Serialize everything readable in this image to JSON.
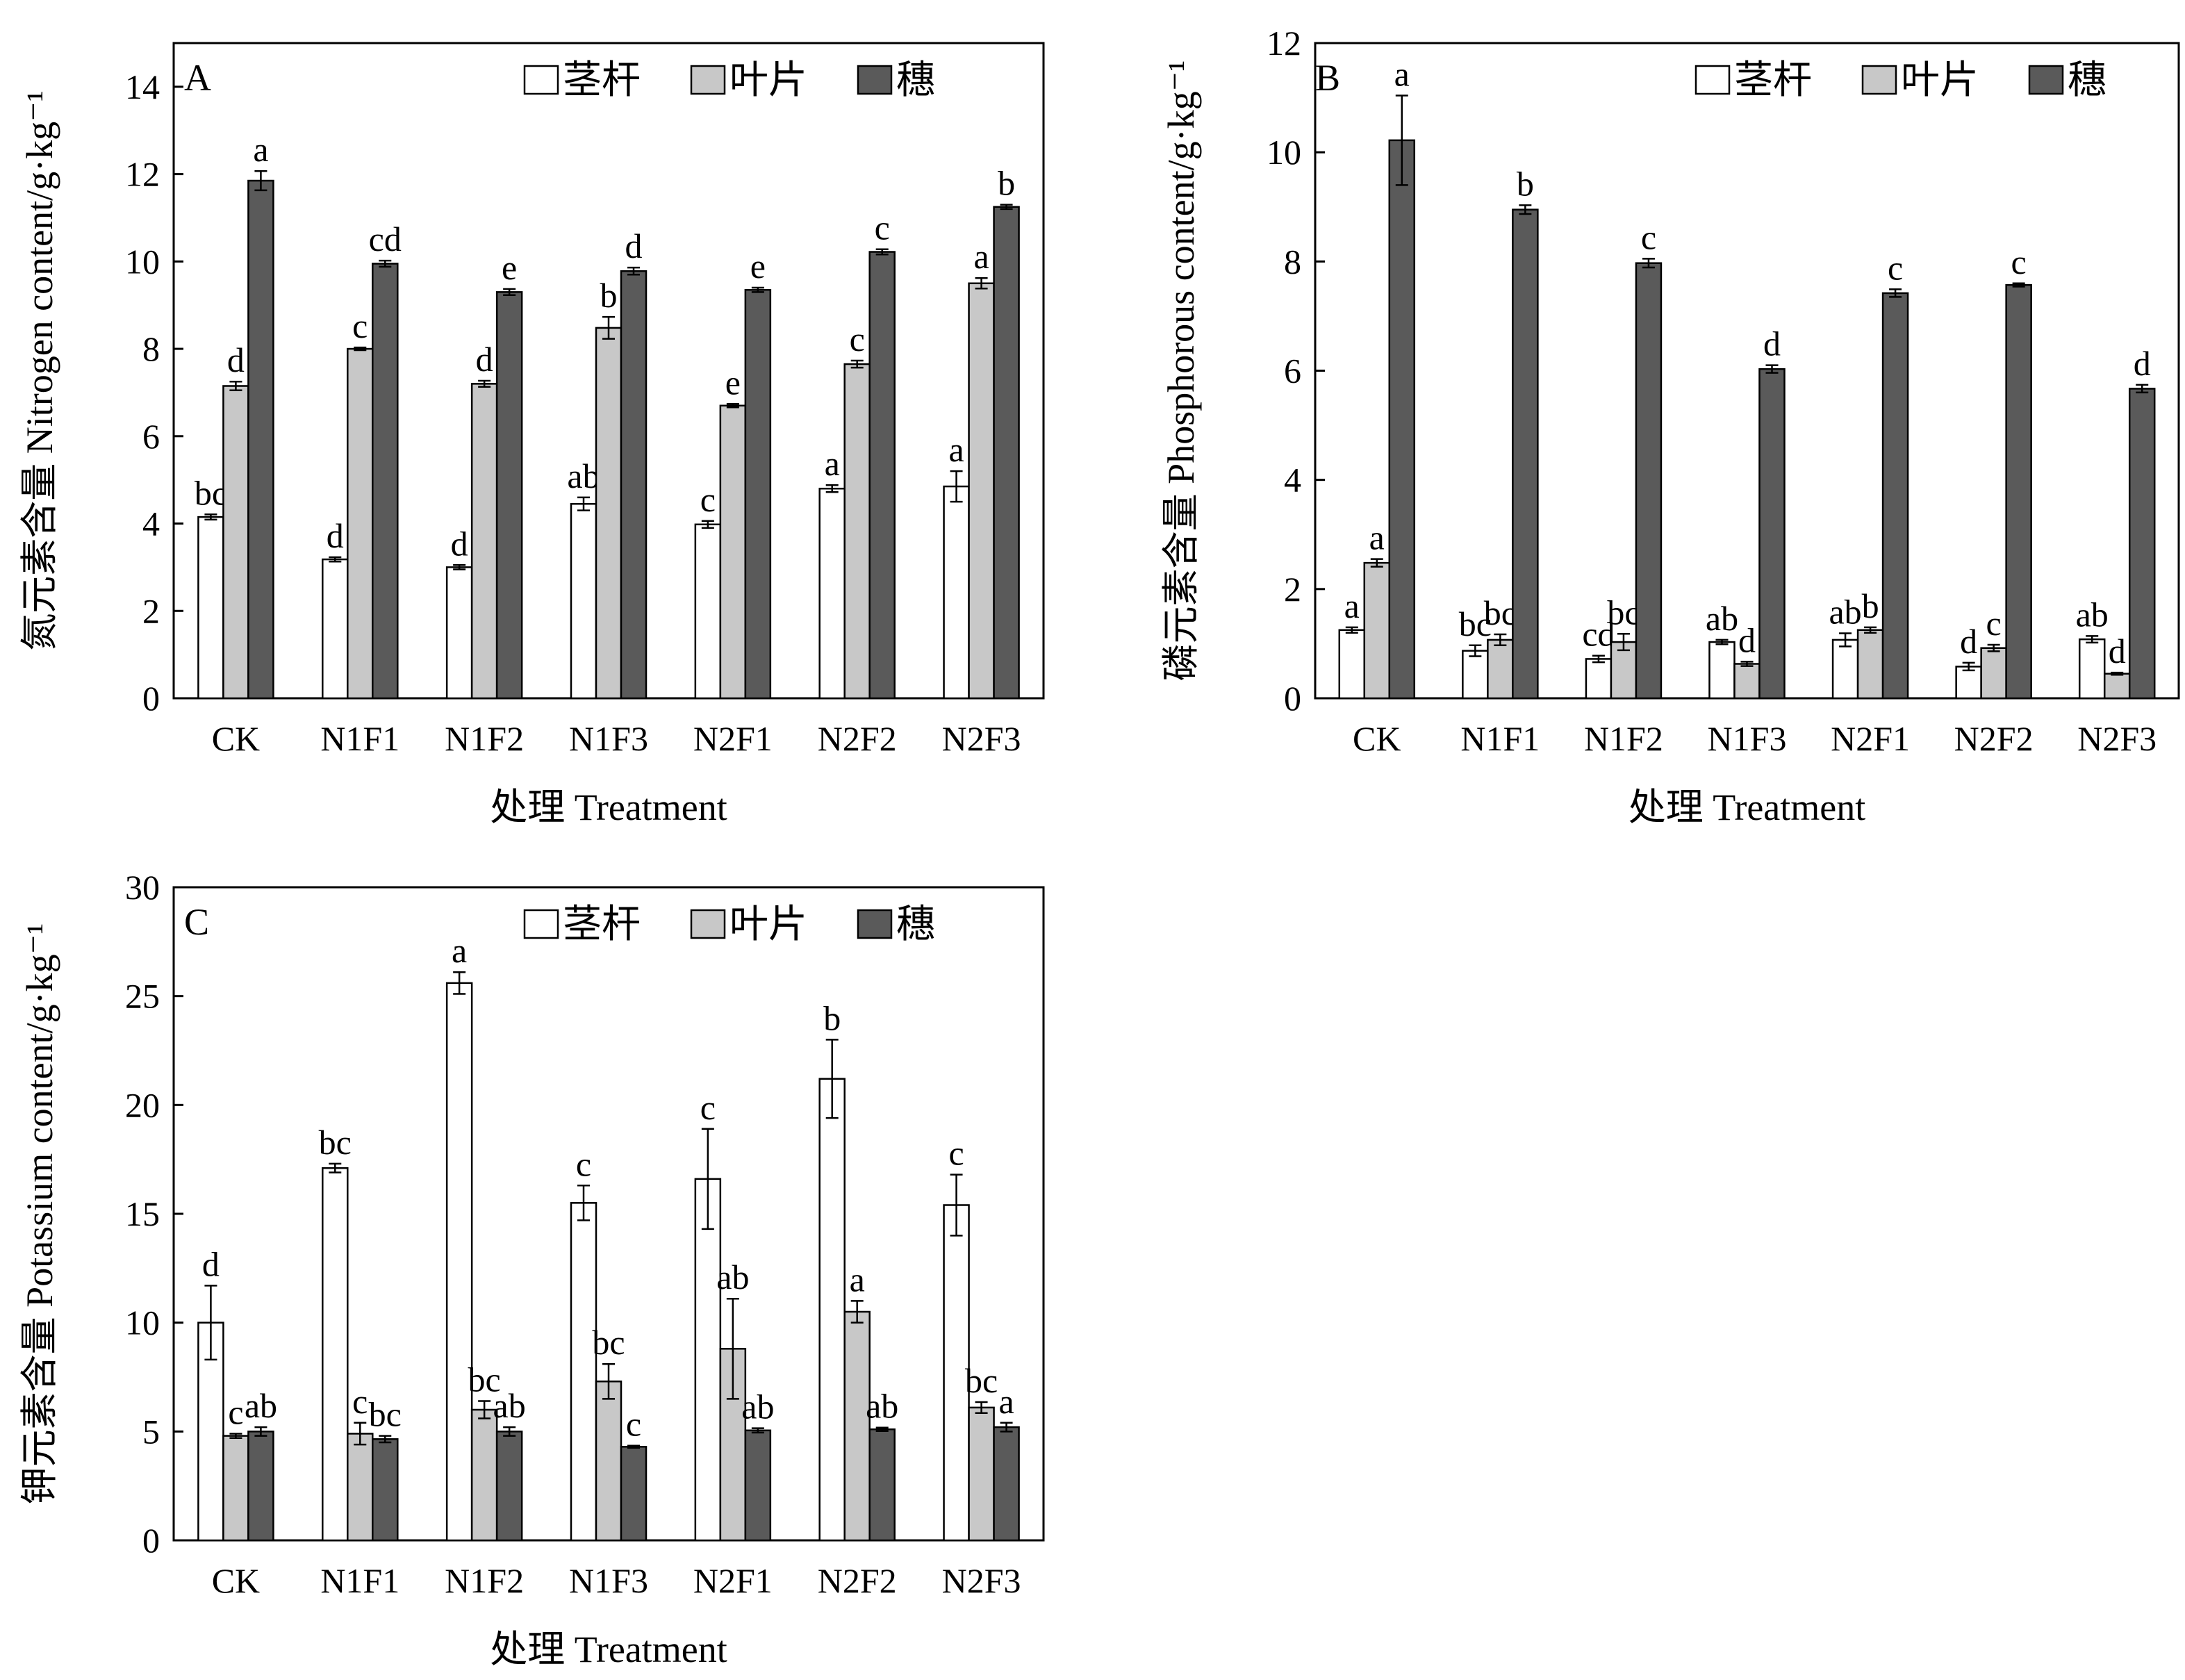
{
  "series_styles": [
    {
      "name": "茎杆",
      "fill": "#ffffff"
    },
    {
      "name": "叶片",
      "fill": "#c8c8c8"
    },
    {
      "name": "穗",
      "fill": "#5a5a5a"
    }
  ],
  "chart_data": [
    {
      "type": "bar",
      "panel": "A",
      "categories": [
        "CK",
        "N1F1",
        "N1F2",
        "N1F3",
        "N2F1",
        "N2F2",
        "N2F3"
      ],
      "xlabel": "处理 Treatment",
      "ylabel": "氮元素含量 Nitrogen content/g·kg⁻¹",
      "ylim": [
        0,
        15
      ],
      "yticks": [
        0,
        2,
        4,
        6,
        8,
        10,
        12,
        14
      ],
      "legend": [
        "茎杆",
        "叶片",
        "穗"
      ],
      "legend_position": "top-right",
      "series": [
        {
          "name": "茎杆",
          "values": [
            4.15,
            3.18,
            3.0,
            4.45,
            3.98,
            4.8,
            4.85
          ],
          "errors": [
            0.06,
            0.05,
            0.05,
            0.15,
            0.08,
            0.08,
            0.35
          ],
          "letters": [
            "bc",
            "d",
            "d",
            "ab",
            "c",
            "a",
            "a"
          ]
        },
        {
          "name": "叶片",
          "values": [
            7.15,
            8.0,
            7.2,
            8.48,
            6.7,
            7.65,
            9.5
          ],
          "errors": [
            0.1,
            0.03,
            0.07,
            0.25,
            0.04,
            0.08,
            0.12
          ],
          "letters": [
            "d",
            "c",
            "d",
            "b",
            "e",
            "c",
            "a"
          ]
        },
        {
          "name": "穗",
          "values": [
            11.85,
            9.95,
            9.3,
            9.78,
            9.35,
            10.22,
            11.25
          ],
          "errors": [
            0.22,
            0.07,
            0.07,
            0.08,
            0.05,
            0.06,
            0.05
          ],
          "letters": [
            "a",
            "cd",
            "e",
            "d",
            "e",
            "c",
            "b"
          ]
        }
      ]
    },
    {
      "type": "bar",
      "panel": "B",
      "categories": [
        "CK",
        "N1F1",
        "N1F2",
        "N1F3",
        "N2F1",
        "N2F2",
        "N2F3"
      ],
      "xlabel": "处理 Treatment",
      "ylabel": "磷元素含量 Phosphorous content/g·kg⁻¹",
      "ylim": [
        0,
        12
      ],
      "yticks": [
        0,
        2,
        4,
        6,
        8,
        10,
        12
      ],
      "legend": [
        "茎杆",
        "叶片",
        "穗"
      ],
      "legend_position": "top-right",
      "series": [
        {
          "name": "茎杆",
          "values": [
            1.25,
            0.87,
            0.72,
            1.03,
            1.07,
            0.58,
            1.08
          ],
          "errors": [
            0.05,
            0.1,
            0.06,
            0.04,
            0.12,
            0.07,
            0.06
          ],
          "letters": [
            "a",
            "bc",
            "cd",
            "ab",
            "ab",
            "d",
            "ab"
          ]
        },
        {
          "name": "叶片",
          "values": [
            2.48,
            1.07,
            1.03,
            0.63,
            1.25,
            0.92,
            0.45
          ],
          "errors": [
            0.07,
            0.1,
            0.15,
            0.04,
            0.05,
            0.06,
            0.02
          ],
          "letters": [
            "a",
            "bc",
            "bc",
            "d",
            "b",
            "c",
            "d"
          ]
        },
        {
          "name": "穗",
          "values": [
            10.22,
            8.95,
            7.97,
            6.03,
            7.42,
            7.57,
            5.67
          ],
          "errors": [
            0.82,
            0.08,
            0.08,
            0.07,
            0.07,
            0.03,
            0.07
          ],
          "letters": [
            "a",
            "b",
            "c",
            "d",
            "c",
            "c",
            "d"
          ]
        }
      ]
    },
    {
      "type": "bar",
      "panel": "C",
      "categories": [
        "CK",
        "N1F1",
        "N1F2",
        "N1F3",
        "N2F1",
        "N2F2",
        "N2F3"
      ],
      "xlabel": "处理 Treatment",
      "ylabel": "钾元素含量 Potassium content/g·kg⁻¹",
      "ylim": [
        0,
        30
      ],
      "yticks": [
        0,
        5,
        10,
        15,
        20,
        25,
        30
      ],
      "legend": [
        "茎杆",
        "叶片",
        "穗"
      ],
      "legend_position": "top-right",
      "series": [
        {
          "name": "茎杆",
          "values": [
            10.0,
            17.1,
            25.6,
            15.5,
            16.6,
            21.2,
            15.4
          ],
          "errors": [
            1.7,
            0.2,
            0.5,
            0.8,
            2.3,
            1.8,
            1.4
          ],
          "letters": [
            "d",
            "bc",
            "a",
            "c",
            "c",
            "b",
            "c"
          ]
        },
        {
          "name": "叶片",
          "values": [
            4.8,
            4.9,
            6.0,
            7.3,
            8.8,
            10.5,
            6.1
          ],
          "errors": [
            0.1,
            0.5,
            0.4,
            0.8,
            2.3,
            0.5,
            0.25
          ],
          "letters": [
            "c",
            "c",
            "bc",
            "bc",
            "ab",
            "a",
            "bc"
          ]
        },
        {
          "name": "穗",
          "values": [
            5.0,
            4.65,
            5.0,
            4.3,
            5.05,
            5.1,
            5.2
          ],
          "errors": [
            0.2,
            0.15,
            0.2,
            0.05,
            0.1,
            0.08,
            0.2
          ],
          "letters": [
            "ab",
            "bc",
            "ab",
            "c",
            "ab",
            "ab",
            "a"
          ]
        }
      ]
    }
  ]
}
